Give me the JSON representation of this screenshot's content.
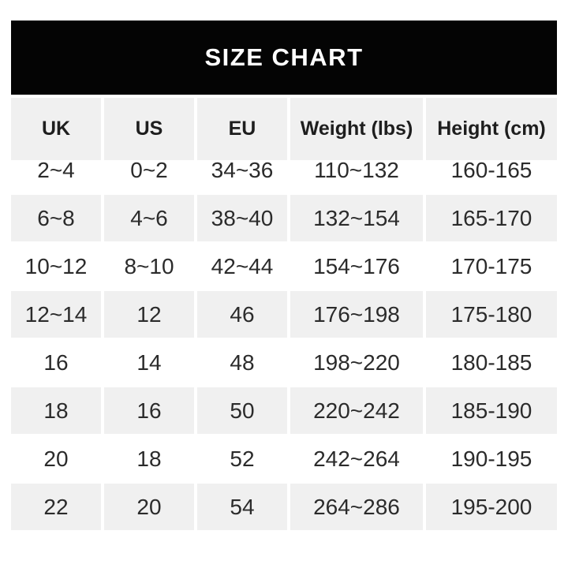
{
  "banner": {
    "title": "SIZE CHART"
  },
  "chart_data": {
    "type": "table",
    "title": "SIZE CHART",
    "columns": [
      "UK",
      "US",
      "EU",
      "Weight (lbs)",
      "Height (cm)"
    ],
    "rows": [
      [
        "2~4",
        "0~2",
        "34~36",
        "110~132",
        "160-165"
      ],
      [
        "6~8",
        "4~6",
        "38~40",
        "132~154",
        "165-170"
      ],
      [
        "10~12",
        "8~10",
        "42~44",
        "154~176",
        "170-175"
      ],
      [
        "12~14",
        "12",
        "46",
        "176~198",
        "175-180"
      ],
      [
        "16",
        "14",
        "48",
        "198~220",
        "180-185"
      ],
      [
        "18",
        "16",
        "50",
        "220~242",
        "185-190"
      ],
      [
        "20",
        "18",
        "52",
        "242~264",
        "190-195"
      ],
      [
        "22",
        "20",
        "54",
        "264~286",
        "195-200"
      ]
    ],
    "layout": {
      "row_striping": "alternating, first data row white",
      "range_separator_weight": "~",
      "range_separator_height": "-"
    }
  },
  "colors": {
    "banner_bg": "#040404",
    "banner_text": "#ffffff",
    "header_bg": "#f0f0f0",
    "alt_row_bg": "#f0f0f0",
    "text": "#2b2b2b",
    "page_bg": "#ffffff"
  }
}
